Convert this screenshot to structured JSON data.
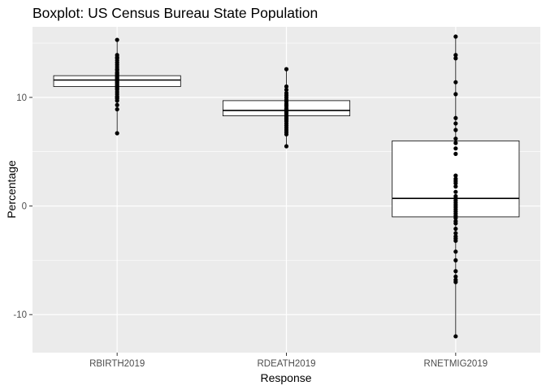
{
  "chart_data": {
    "type": "boxplot",
    "title": "Boxplot: US Census Bureau State Population",
    "xlabel": "Response",
    "ylabel": "Percentage",
    "ylim": [
      -13.5,
      16.5
    ],
    "yticks": [
      -10,
      0,
      10
    ],
    "grid": true,
    "categories": [
      "RBIRTH2019",
      "RDEATH2019",
      "RNETMIG2019"
    ],
    "boxes": [
      {
        "category": "RBIRTH2019",
        "whisker_low": 6.7,
        "q1": 11.0,
        "median": 11.6,
        "q3": 12.0,
        "whisker_high": 15.3
      },
      {
        "category": "RDEATH2019",
        "whisker_low": 5.5,
        "q1": 8.3,
        "median": 8.8,
        "q3": 9.7,
        "whisker_high": 12.6
      },
      {
        "category": "RNETMIG2019",
        "whisker_low": -12.0,
        "q1": -1.0,
        "median": 0.7,
        "q3": 6.0,
        "whisker_high": 15.6
      }
    ],
    "points": [
      {
        "category": "RBIRTH2019",
        "values": [
          15.3,
          13.9,
          13.7,
          13.6,
          13.4,
          13.2,
          13.0,
          12.8,
          12.6,
          12.5,
          12.3,
          12.2,
          12.1,
          12.0,
          11.9,
          11.8,
          11.7,
          11.6,
          11.5,
          11.4,
          11.3,
          11.2,
          11.1,
          11.0,
          10.9,
          10.8,
          10.7,
          10.5,
          10.3,
          10.1,
          10.0,
          9.9,
          9.7,
          9.3,
          8.9,
          6.7
        ]
      },
      {
        "category": "RDEATH2019",
        "values": [
          12.6,
          11.0,
          10.7,
          10.4,
          10.2,
          10.0,
          9.8,
          9.6,
          9.4,
          9.3,
          9.2,
          9.0,
          8.9,
          8.8,
          8.7,
          8.6,
          8.5,
          8.4,
          8.3,
          8.2,
          8.1,
          8.0,
          7.9,
          7.8,
          7.6,
          7.4,
          7.2,
          7.0,
          6.8,
          6.6,
          5.5
        ]
      },
      {
        "category": "RNETMIG2019",
        "values": [
          15.6,
          13.9,
          13.6,
          11.4,
          10.3,
          8.1,
          7.6,
          7.0,
          6.2,
          5.8,
          5.3,
          4.8,
          2.8,
          2.5,
          2.3,
          2.1,
          1.8,
          1.3,
          0.9,
          0.7,
          0.5,
          0.3,
          0.1,
          -0.1,
          -0.3,
          -0.5,
          -0.7,
          -0.9,
          -1.1,
          -1.4,
          -1.6,
          -2.1,
          -2.5,
          -2.8,
          -3.0,
          -3.2,
          -4.2,
          -5.0,
          -6.0,
          -6.5,
          -6.8,
          -7.0,
          -12.0
        ]
      }
    ]
  }
}
